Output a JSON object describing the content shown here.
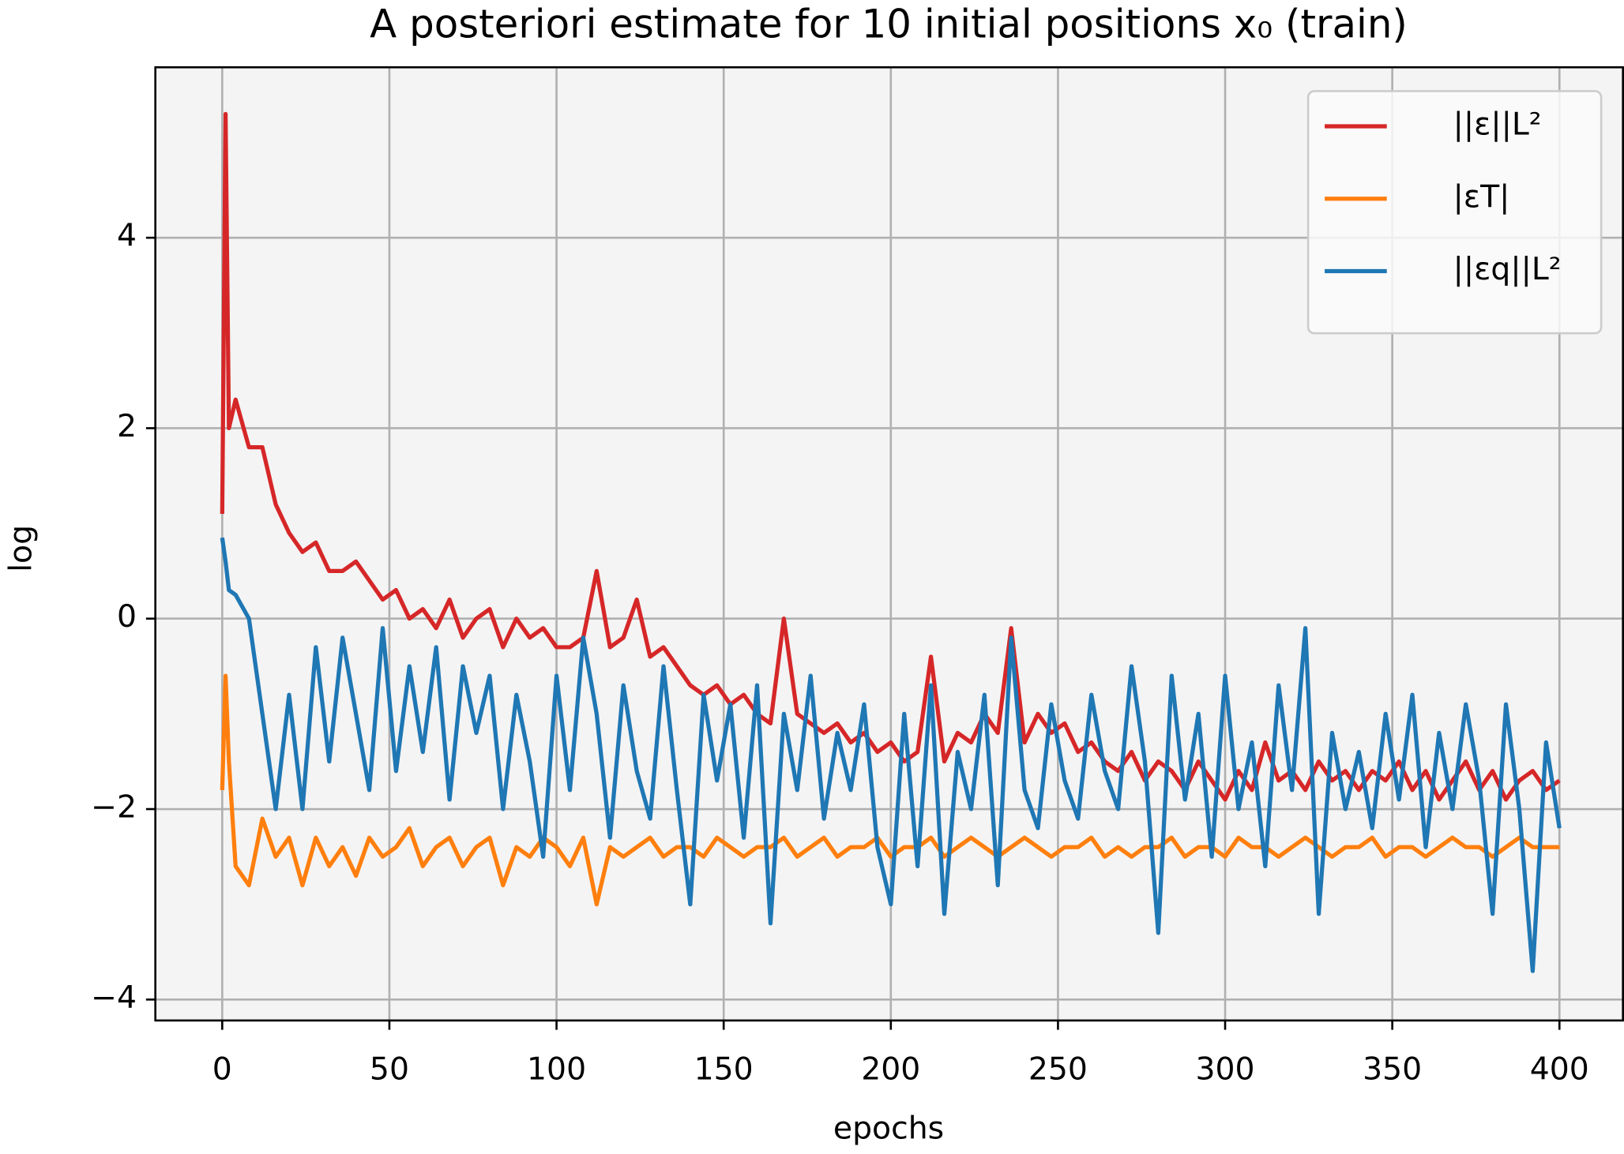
{
  "chart_data": {
    "type": "line",
    "title": "A posteriori estimate for 10 initial positions x₀ (train)",
    "xlabel": "epochs",
    "ylabel": "log",
    "x": [
      0,
      1,
      2,
      4,
      8,
      12,
      16,
      20,
      24,
      28,
      32,
      36,
      40,
      44,
      48,
      52,
      56,
      60,
      64,
      68,
      72,
      76,
      80,
      84,
      88,
      92,
      96,
      100,
      104,
      108,
      112,
      116,
      120,
      124,
      128,
      132,
      136,
      140,
      144,
      148,
      152,
      156,
      160,
      164,
      168,
      172,
      176,
      180,
      184,
      188,
      192,
      196,
      200,
      204,
      208,
      212,
      216,
      220,
      224,
      228,
      232,
      236,
      240,
      244,
      248,
      252,
      256,
      260,
      264,
      268,
      272,
      276,
      280,
      284,
      288,
      292,
      296,
      300,
      304,
      308,
      312,
      316,
      320,
      324,
      328,
      332,
      336,
      340,
      344,
      348,
      352,
      356,
      360,
      364,
      368,
      372,
      376,
      380,
      384,
      388,
      392,
      396,
      400
    ],
    "series": [
      {
        "name": "||ε||L²",
        "color": "#d62728",
        "values": [
          1.1,
          5.3,
          2.0,
          2.3,
          1.8,
          1.8,
          1.2,
          0.9,
          0.7,
          0.8,
          0.5,
          0.5,
          0.6,
          0.4,
          0.2,
          0.3,
          0.0,
          0.1,
          -0.1,
          0.2,
          -0.2,
          0.0,
          0.1,
          -0.3,
          0.0,
          -0.2,
          -0.1,
          -0.3,
          -0.3,
          -0.2,
          0.5,
          -0.3,
          -0.2,
          0.2,
          -0.4,
          -0.3,
          -0.5,
          -0.7,
          -0.8,
          -0.7,
          -0.9,
          -0.8,
          -1.0,
          -1.1,
          0.0,
          -1.0,
          -1.1,
          -1.2,
          -1.1,
          -1.3,
          -1.2,
          -1.4,
          -1.3,
          -1.5,
          -1.4,
          -0.4,
          -1.5,
          -1.2,
          -1.3,
          -1.0,
          -1.2,
          -0.1,
          -1.3,
          -1.0,
          -1.2,
          -1.1,
          -1.4,
          -1.3,
          -1.5,
          -1.6,
          -1.4,
          -1.7,
          -1.5,
          -1.6,
          -1.8,
          -1.5,
          -1.7,
          -1.9,
          -1.6,
          -1.8,
          -1.3,
          -1.7,
          -1.6,
          -1.8,
          -1.5,
          -1.7,
          -1.6,
          -1.8,
          -1.6,
          -1.7,
          -1.5,
          -1.8,
          -1.6,
          -1.9,
          -1.7,
          -1.5,
          -1.8,
          -1.6,
          -1.9,
          -1.7,
          -1.6,
          -1.8,
          -1.7
        ]
      },
      {
        "name": "|εT|",
        "color": "#ff7f0e",
        "values": [
          -1.8,
          -0.6,
          -1.5,
          -2.6,
          -2.8,
          -2.1,
          -2.5,
          -2.3,
          -2.8,
          -2.3,
          -2.6,
          -2.4,
          -2.7,
          -2.3,
          -2.5,
          -2.4,
          -2.2,
          -2.6,
          -2.4,
          -2.3,
          -2.6,
          -2.4,
          -2.3,
          -2.8,
          -2.4,
          -2.5,
          -2.3,
          -2.4,
          -2.6,
          -2.3,
          -3.0,
          -2.4,
          -2.5,
          -2.4,
          -2.3,
          -2.5,
          -2.4,
          -2.4,
          -2.5,
          -2.3,
          -2.4,
          -2.5,
          -2.4,
          -2.4,
          -2.3,
          -2.5,
          -2.4,
          -2.3,
          -2.5,
          -2.4,
          -2.4,
          -2.3,
          -2.5,
          -2.4,
          -2.4,
          -2.3,
          -2.5,
          -2.4,
          -2.3,
          -2.4,
          -2.5,
          -2.4,
          -2.3,
          -2.4,
          -2.5,
          -2.4,
          -2.4,
          -2.3,
          -2.5,
          -2.4,
          -2.5,
          -2.4,
          -2.4,
          -2.3,
          -2.5,
          -2.4,
          -2.4,
          -2.5,
          -2.3,
          -2.4,
          -2.4,
          -2.5,
          -2.4,
          -2.3,
          -2.4,
          -2.5,
          -2.4,
          -2.4,
          -2.3,
          -2.5,
          -2.4,
          -2.4,
          -2.5,
          -2.4,
          -2.3,
          -2.4,
          -2.4,
          -2.5,
          -2.4,
          -2.3,
          -2.4,
          -2.4,
          -2.4
        ]
      },
      {
        "name": "||εq||L²",
        "color": "#1f77b4",
        "values": [
          0.85,
          0.6,
          0.3,
          0.25,
          0.0,
          -1.0,
          -2.0,
          -0.8,
          -2.0,
          -0.3,
          -1.5,
          -0.2,
          -1.0,
          -1.8,
          -0.1,
          -1.6,
          -0.5,
          -1.4,
          -0.3,
          -1.9,
          -0.5,
          -1.2,
          -0.6,
          -2.0,
          -0.8,
          -1.5,
          -2.5,
          -0.6,
          -1.8,
          -0.2,
          -1.0,
          -2.3,
          -0.7,
          -1.6,
          -2.1,
          -0.5,
          -1.8,
          -3.0,
          -0.8,
          -1.7,
          -0.9,
          -2.3,
          -0.7,
          -3.2,
          -1.0,
          -1.8,
          -0.6,
          -2.1,
          -1.2,
          -1.8,
          -0.9,
          -2.4,
          -3.0,
          -1.0,
          -2.6,
          -0.7,
          -3.1,
          -1.4,
          -2.0,
          -0.8,
          -2.8,
          -0.2,
          -1.8,
          -2.2,
          -0.9,
          -1.7,
          -2.1,
          -0.8,
          -1.6,
          -2.0,
          -0.5,
          -1.5,
          -3.3,
          -0.6,
          -1.9,
          -1.0,
          -2.5,
          -0.6,
          -2.0,
          -1.3,
          -2.6,
          -0.7,
          -1.8,
          -0.1,
          -3.1,
          -1.2,
          -2.0,
          -1.4,
          -2.2,
          -1.0,
          -1.9,
          -0.8,
          -2.4,
          -1.2,
          -2.0,
          -0.9,
          -1.7,
          -3.1,
          -0.9,
          -2.0,
          -3.7,
          -1.3,
          -2.2
        ]
      }
    ],
    "xlim": [
      -20,
      419
    ],
    "ylim": [
      -4.22,
      5.79
    ],
    "xticks": [
      0,
      50,
      100,
      150,
      200,
      250,
      300,
      350,
      400
    ],
    "yticks": [
      {
        "value": -4,
        "label": "−4"
      },
      {
        "value": -2,
        "label": "−2"
      },
      0,
      2,
      4
    ],
    "grid": true,
    "legend": "upper right"
  }
}
